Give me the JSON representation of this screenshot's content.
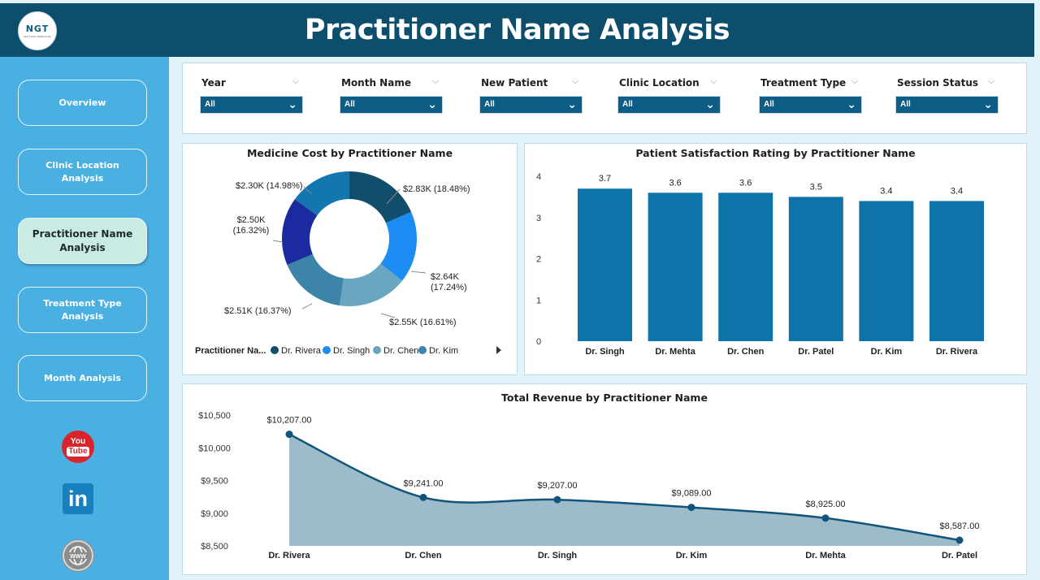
{
  "header": {
    "title": "Practitioner Name Analysis",
    "logo_text": "NGT",
    "logo_subtext": "NEXT GEN TEMPLATES"
  },
  "sidebar": {
    "items": [
      {
        "label": "Overview",
        "active": false
      },
      {
        "label": "Clinic Location Analysis",
        "active": false
      },
      {
        "label": "Practitioner Name Analysis",
        "active": true
      },
      {
        "label": "Treatment Type Analysis",
        "active": false
      },
      {
        "label": "Month Analysis",
        "active": false
      }
    ],
    "social": [
      {
        "name": "youtube-icon",
        "label_top": "You",
        "label_bottom": "Tube"
      },
      {
        "name": "linkedin-icon",
        "label": "in"
      },
      {
        "name": "website-icon",
        "label": "WWW"
      }
    ]
  },
  "filters": [
    {
      "label": "Year",
      "value": "All"
    },
    {
      "label": "Month Name",
      "value": "All"
    },
    {
      "label": "New Patient",
      "value": "All"
    },
    {
      "label": "Clinic Location",
      "value": "All"
    },
    {
      "label": "Treatment Type",
      "value": "All"
    },
    {
      "label": "Session Status",
      "value": "All"
    }
  ],
  "donut": {
    "title": "Medicine Cost by Practitioner Name",
    "legend_title": "Practitioner Na...",
    "legend": [
      {
        "name": "Dr. Rivera",
        "color": "#114e6c"
      },
      {
        "name": "Dr. Singh",
        "color": "#1a8cf2"
      },
      {
        "name": "Dr. Chen",
        "color": "#6aa6c0"
      },
      {
        "name": "Dr. Kim",
        "color": "#3d85a8"
      }
    ]
  },
  "bar": {
    "title": "Patient Satisfaction Rating by Practitioner Name"
  },
  "area": {
    "title": "Total Revenue by Practitioner Name"
  },
  "chart_data": [
    {
      "type": "pie",
      "title": "Medicine Cost by Practitioner Name",
      "slices": [
        {
          "label": "$2.83K (18.48%)",
          "value": 2.83,
          "percent": 18.48,
          "color": "#114e6c"
        },
        {
          "label_lines": [
            "$2.64K",
            "(17.24%)"
          ],
          "value": 2.64,
          "percent": 17.24,
          "color": "#1a8cf2"
        },
        {
          "label": "$2.55K (16.61%)",
          "value": 2.55,
          "percent": 16.61,
          "color": "#6aa6c0"
        },
        {
          "label": "$2.51K (16.37%)",
          "value": 2.51,
          "percent": 16.37,
          "color": "#3d85a8"
        },
        {
          "label_lines": [
            "$2.50K",
            "(16.32%)"
          ],
          "value": 2.5,
          "percent": 16.32,
          "color": "#1c2aa0"
        },
        {
          "label": "$2.30K (14.98%)",
          "value": 2.3,
          "percent": 14.98,
          "color": "#1476b0"
        }
      ]
    },
    {
      "type": "bar",
      "title": "Patient Satisfaction Rating by Practitioner Name",
      "categories": [
        "Dr. Singh",
        "Dr. Mehta",
        "Dr. Chen",
        "Dr. Patel",
        "Dr. Kim",
        "Dr. Rivera"
      ],
      "values": [
        3.7,
        3.6,
        3.6,
        3.5,
        3.4,
        3.4
      ],
      "value_labels": [
        "3.7",
        "3.6",
        "3.6",
        "3.5",
        "3.4",
        "3.4"
      ],
      "yticks": [
        "0",
        "1",
        "2",
        "3",
        "4"
      ],
      "ylim": [
        0,
        4
      ],
      "color": "#0e73a8"
    },
    {
      "type": "area",
      "title": "Total Revenue by Practitioner Name",
      "categories": [
        "Dr. Rivera",
        "Dr. Chen",
        "Dr. Singh",
        "Dr. Kim",
        "Dr. Mehta",
        "Dr. Patel"
      ],
      "values": [
        10207.0,
        9241.0,
        9207.0,
        9089.0,
        8925.0,
        8587.0
      ],
      "value_labels": [
        "$10,207.00",
        "$9,241.00",
        "$9,207.00",
        "$9,089.00",
        "$8,925.00",
        "$8,587.00"
      ],
      "yticks": [
        "$8,500",
        "$9,000",
        "$9,500",
        "$10,000",
        "$10,500"
      ],
      "ylim": [
        8500,
        10500
      ],
      "line_color": "#13557a",
      "fill_color": "#9dbccb"
    }
  ]
}
